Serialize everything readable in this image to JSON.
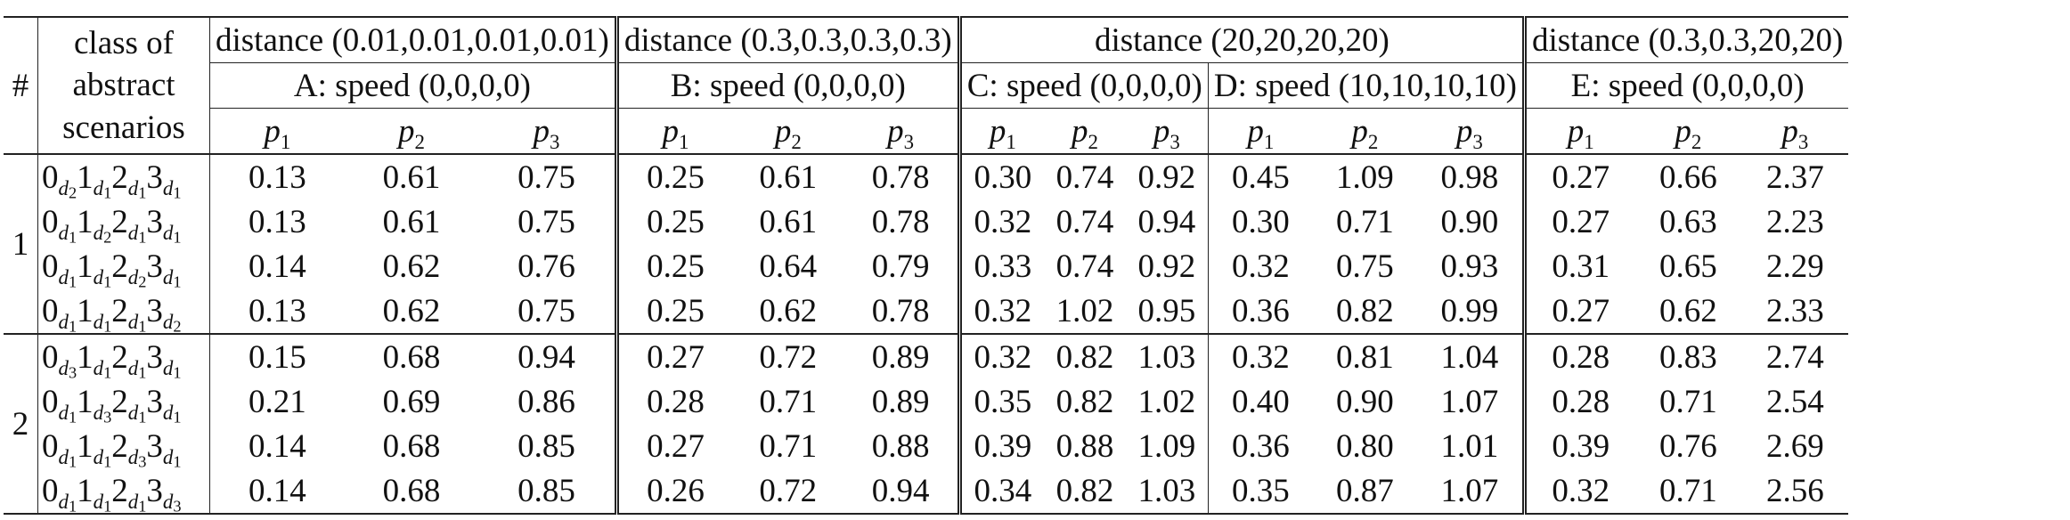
{
  "header": {
    "idx_label": "#",
    "class_label_lines": [
      "class of",
      "abstract",
      "scenarios"
    ],
    "distance_groups": [
      {
        "label": "distance (0.01,0.01,0.01,0.01)"
      },
      {
        "label": "distance (0.3,0.3,0.3,0.3)"
      },
      {
        "label": "distance (20,20,20,20)"
      },
      {
        "label": "distance (0.3,0.3,20,20)"
      }
    ],
    "speed_groups": [
      {
        "label": "A: speed (0,0,0,0)"
      },
      {
        "label": "B: speed (0,0,0,0)"
      },
      {
        "label": "C: speed (0,0,0,0)"
      },
      {
        "label": "D: speed (10,10,10,10)"
      },
      {
        "label": "E: speed (0,0,0,0)"
      }
    ],
    "p_labels": [
      "p",
      "p",
      "p"
    ],
    "p_subs": [
      "1",
      "2",
      "3"
    ]
  },
  "groups": [
    {
      "index": "1",
      "rows": [
        {
          "scenario": [
            [
              "0",
              "2"
            ],
            [
              "1",
              "1"
            ],
            [
              "2",
              "1"
            ],
            [
              "3",
              "1"
            ]
          ],
          "values": [
            "0.13",
            "0.61",
            "0.75",
            "0.25",
            "0.61",
            "0.78",
            "0.30",
            "0.74",
            "0.92",
            "0.45",
            "1.09",
            "0.98",
            "0.27",
            "0.66",
            "2.37"
          ]
        },
        {
          "scenario": [
            [
              "0",
              "1"
            ],
            [
              "1",
              "2"
            ],
            [
              "2",
              "1"
            ],
            [
              "3",
              "1"
            ]
          ],
          "values": [
            "0.13",
            "0.61",
            "0.75",
            "0.25",
            "0.61",
            "0.78",
            "0.32",
            "0.74",
            "0.94",
            "0.30",
            "0.71",
            "0.90",
            "0.27",
            "0.63",
            "2.23"
          ]
        },
        {
          "scenario": [
            [
              "0",
              "1"
            ],
            [
              "1",
              "1"
            ],
            [
              "2",
              "2"
            ],
            [
              "3",
              "1"
            ]
          ],
          "values": [
            "0.14",
            "0.62",
            "0.76",
            "0.25",
            "0.64",
            "0.79",
            "0.33",
            "0.74",
            "0.92",
            "0.32",
            "0.75",
            "0.93",
            "0.31",
            "0.65",
            "2.29"
          ]
        },
        {
          "scenario": [
            [
              "0",
              "1"
            ],
            [
              "1",
              "1"
            ],
            [
              "2",
              "1"
            ],
            [
              "3",
              "2"
            ]
          ],
          "values": [
            "0.13",
            "0.62",
            "0.75",
            "0.25",
            "0.62",
            "0.78",
            "0.32",
            "1.02",
            "0.95",
            "0.36",
            "0.82",
            "0.99",
            "0.27",
            "0.62",
            "2.33"
          ]
        }
      ]
    },
    {
      "index": "2",
      "rows": [
        {
          "scenario": [
            [
              "0",
              "3"
            ],
            [
              "1",
              "1"
            ],
            [
              "2",
              "1"
            ],
            [
              "3",
              "1"
            ]
          ],
          "values": [
            "0.15",
            "0.68",
            "0.94",
            "0.27",
            "0.72",
            "0.89",
            "0.32",
            "0.82",
            "1.03",
            "0.32",
            "0.81",
            "1.04",
            "0.28",
            "0.83",
            "2.74"
          ]
        },
        {
          "scenario": [
            [
              "0",
              "1"
            ],
            [
              "1",
              "3"
            ],
            [
              "2",
              "1"
            ],
            [
              "3",
              "1"
            ]
          ],
          "values": [
            "0.21",
            "0.69",
            "0.86",
            "0.28",
            "0.71",
            "0.89",
            "0.35",
            "0.82",
            "1.02",
            "0.40",
            "0.90",
            "1.07",
            "0.28",
            "0.71",
            "2.54"
          ]
        },
        {
          "scenario": [
            [
              "0",
              "1"
            ],
            [
              "1",
              "1"
            ],
            [
              "2",
              "3"
            ],
            [
              "3",
              "1"
            ]
          ],
          "values": [
            "0.14",
            "0.68",
            "0.85",
            "0.27",
            "0.71",
            "0.88",
            "0.39",
            "0.88",
            "1.09",
            "0.36",
            "0.80",
            "1.01",
            "0.39",
            "0.76",
            "2.69"
          ]
        },
        {
          "scenario": [
            [
              "0",
              "1"
            ],
            [
              "1",
              "1"
            ],
            [
              "2",
              "1"
            ],
            [
              "3",
              "3"
            ]
          ],
          "values": [
            "0.14",
            "0.68",
            "0.85",
            "0.26",
            "0.72",
            "0.94",
            "0.34",
            "0.82",
            "1.03",
            "0.35",
            "0.87",
            "1.07",
            "0.32",
            "0.71",
            "2.56"
          ]
        }
      ]
    }
  ],
  "scenario_sub_letter": "d"
}
